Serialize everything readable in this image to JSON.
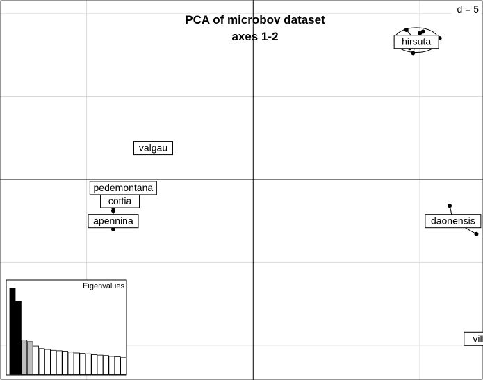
{
  "chart_data": {
    "type": "scatter",
    "title": "PCA of microbov dataset",
    "subtitle": "axes 1-2",
    "scale_label": "d = 5",
    "xlim": [
      -7.6,
      6.9
    ],
    "ylim": [
      -12.1,
      10.8
    ],
    "grid_step": 5,
    "grid": true,
    "groups": [
      {
        "name": "hirsuta",
        "label_pos": [
          4.9,
          8.3
        ],
        "points": [
          [
            4.6,
            9.0
          ],
          [
            5.0,
            8.8
          ],
          [
            5.6,
            8.5
          ],
          [
            4.5,
            8.0
          ],
          [
            4.7,
            7.9
          ],
          [
            4.8,
            7.6
          ],
          [
            5.1,
            8.9
          ]
        ]
      },
      {
        "name": "valgau",
        "label_pos": [
          -3.0,
          1.9
        ],
        "points": [
          [
            -3.0,
            1.9
          ]
        ]
      },
      {
        "name": "pedemontana",
        "label_pos": [
          -3.9,
          -0.5
        ],
        "points": [
          [
            -4.2,
            -1.7
          ]
        ]
      },
      {
        "name": "cottia",
        "label_pos": [
          -4.0,
          -1.3
        ],
        "points": [
          [
            -4.2,
            -1.7
          ]
        ]
      },
      {
        "name": "apennina",
        "label_pos": [
          -4.2,
          -2.5
        ],
        "points": [
          [
            -4.2,
            -1.9
          ],
          [
            -4.2,
            -3.0
          ]
        ]
      },
      {
        "name": "daonensis",
        "label_pos": [
          6.0,
          -2.5
        ],
        "points": [
          [
            5.9,
            -1.6
          ],
          [
            6.7,
            -3.3
          ]
        ]
      },
      {
        "name": "villosa",
        "label_pos": [
          7.0,
          -9.6
        ],
        "points": [
          [
            7.1,
            -10.0
          ]
        ]
      }
    ],
    "inset": {
      "title": "Eigenvalues",
      "values": [
        10.0,
        8.5,
        4.0,
        3.8,
        3.3,
        3.0,
        2.9,
        2.8,
        2.75,
        2.7,
        2.6,
        2.5,
        2.45,
        2.4,
        2.3,
        2.25,
        2.2,
        2.1,
        2.05,
        1.95
      ],
      "highlight_black": 2,
      "highlight_grey": 2
    }
  }
}
